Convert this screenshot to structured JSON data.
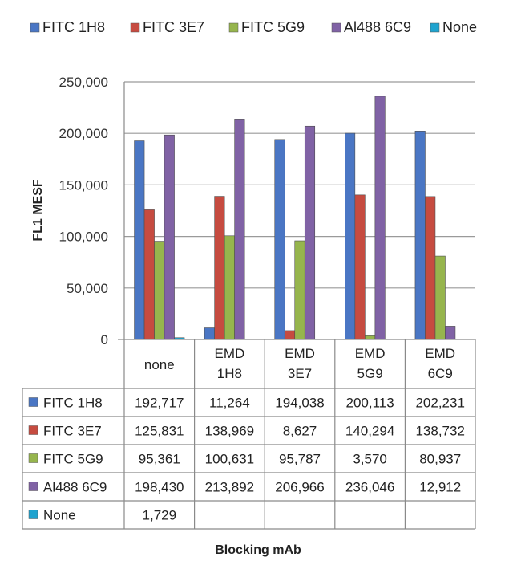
{
  "chart_data": {
    "type": "bar",
    "categories": [
      "none",
      "EMD 1H8",
      "EMD 3E7",
      "EMD 5G9",
      "EMD 6C9"
    ],
    "category_lines": [
      [
        "none"
      ],
      [
        "EMD",
        "1H8"
      ],
      [
        "EMD",
        "3E7"
      ],
      [
        "EMD",
        "5G9"
      ],
      [
        "EMD",
        "6C9"
      ]
    ],
    "series": [
      {
        "name": "FITC 1H8",
        "color": "#4a76c4",
        "values": [
          192717,
          11264,
          194038,
          200113,
          202231
        ],
        "labels": [
          "192,717",
          "11,264",
          "194,038",
          "200,113",
          "202,231"
        ]
      },
      {
        "name": "FITC 3E7",
        "color": "#c64b40",
        "values": [
          125831,
          138969,
          8627,
          140294,
          138732
        ],
        "labels": [
          "125,831",
          "138,969",
          "8,627",
          "140,294",
          "138,732"
        ]
      },
      {
        "name": "FITC 5G9",
        "color": "#96b54d",
        "values": [
          95361,
          100631,
          95787,
          3570,
          80937
        ],
        "labels": [
          "95,361",
          "100,631",
          "95,787",
          "3,570",
          "80,937"
        ]
      },
      {
        "name": "Al488 6C9",
        "color": "#8062a5",
        "values": [
          198430,
          213892,
          206966,
          236046,
          12912
        ],
        "labels": [
          "198,430",
          "213,892",
          "206,966",
          "236,046",
          "12,912"
        ]
      },
      {
        "name": "None",
        "color": "#1fa3cf",
        "values": [
          1729,
          null,
          null,
          null,
          null
        ],
        "labels": [
          "1,729",
          "",
          "",
          "",
          ""
        ]
      }
    ],
    "ylabel": "FL1 MESF",
    "xlabel": "Blocking mAb",
    "ylim": [
      0,
      250000
    ],
    "yticks": [
      "0",
      "50,000",
      "100,000",
      "150,000",
      "200,000",
      "250,000"
    ],
    "grid": true,
    "legend_position": "top",
    "data_table": true
  }
}
